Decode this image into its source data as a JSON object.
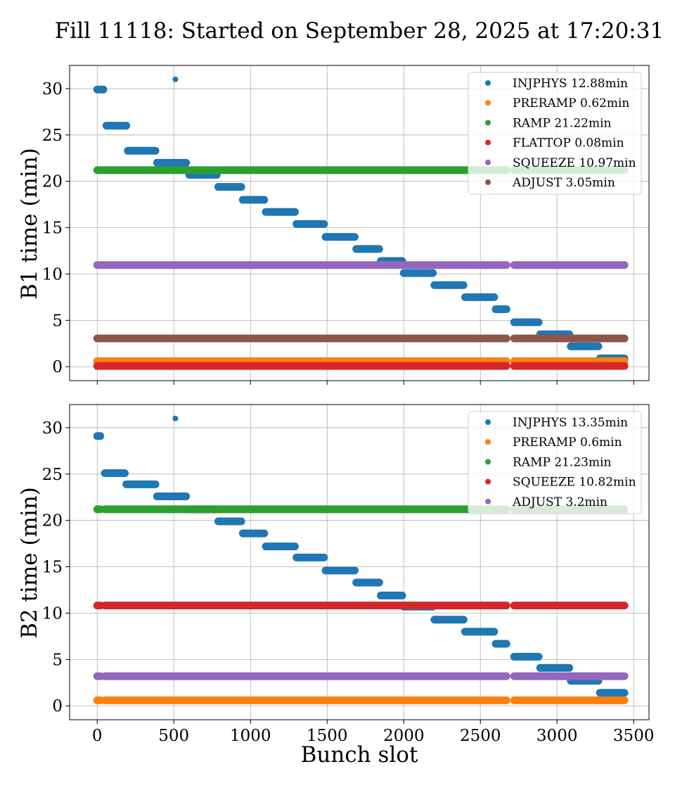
{
  "chart_data": [
    {
      "type": "scatter",
      "title": "Fill 11118: Started on September 28, 2025 at 17:20:31",
      "xlabel": "",
      "ylabel": "B1 time (min)",
      "xlim": [
        -180,
        3600
      ],
      "ylim": [
        -1.5,
        32.5
      ],
      "xticks": [
        0,
        500,
        1000,
        1500,
        2000,
        2500,
        3000,
        3500
      ],
      "yticks": [
        0,
        5,
        10,
        15,
        20,
        25,
        30
      ],
      "x_tick_labels_shown": false,
      "grid": true,
      "legend_position": "top-right",
      "colors": [
        "#1f77b4",
        "#ff7f0e",
        "#2ca02c",
        "#d62728",
        "#9467bd",
        "#8c564b"
      ],
      "series": [
        {
          "name": "INJPHYS 12.88min",
          "segments": [
            {
              "x": [
                0,
                40
              ],
              "y": 29.9
            },
            {
              "x": [
                60,
                190
              ],
              "y": 26.0
            },
            {
              "x": [
                200,
                380
              ],
              "y": 23.3
            },
            {
              "x": [
                390,
                580
              ],
              "y": 22.0
            },
            {
              "x": [
                600,
                780
              ],
              "y": 20.7
            },
            {
              "x": [
                790,
                940
              ],
              "y": 19.4
            },
            {
              "x": [
                950,
                1090
              ],
              "y": 18.0
            },
            {
              "x": [
                1100,
                1290
              ],
              "y": 16.7
            },
            {
              "x": [
                1300,
                1480
              ],
              "y": 15.4
            },
            {
              "x": [
                1490,
                1680
              ],
              "y": 14.0
            },
            {
              "x": [
                1690,
                1840
              ],
              "y": 12.7
            },
            {
              "x": [
                1850,
                1990
              ],
              "y": 11.4
            },
            {
              "x": [
                2000,
                2190
              ],
              "y": 10.1
            },
            {
              "x": [
                2200,
                2390
              ],
              "y": 8.8
            },
            {
              "x": [
                2400,
                2590
              ],
              "y": 7.5
            },
            {
              "x": [
                2600,
                2670
              ],
              "y": 6.2
            },
            {
              "x": [
                2720,
                2880
              ],
              "y": 4.8
            },
            {
              "x": [
                2890,
                3080
              ],
              "y": 3.5
            },
            {
              "x": [
                3090,
                3270
              ],
              "y": 2.2
            },
            {
              "x": [
                3280,
                3440
              ],
              "y": 0.9
            }
          ],
          "points": [
            {
              "x": 510,
              "y": 31.0
            }
          ]
        },
        {
          "name": "PRERAMP 0.62min",
          "segments": [
            {
              "x": [
                0,
                2670
              ],
              "y": 0.6
            },
            {
              "x": [
                2720,
                3440
              ],
              "y": 0.6
            }
          ]
        },
        {
          "name": "RAMP 21.22min",
          "segments": [
            {
              "x": [
                0,
                2670
              ],
              "y": 21.2
            },
            {
              "x": [
                2720,
                3440
              ],
              "y": 21.2
            }
          ]
        },
        {
          "name": "FLATTOP 0.08min",
          "segments": [
            {
              "x": [
                0,
                2670
              ],
              "y": 0.08
            },
            {
              "x": [
                2720,
                3440
              ],
              "y": 0.08
            }
          ]
        },
        {
          "name": "SQUEEZE 10.97min",
          "segments": [
            {
              "x": [
                0,
                2670
              ],
              "y": 10.97
            },
            {
              "x": [
                2720,
                3440
              ],
              "y": 10.97
            }
          ]
        },
        {
          "name": "ADJUST 3.05min",
          "segments": [
            {
              "x": [
                0,
                2670
              ],
              "y": 3.05
            },
            {
              "x": [
                2720,
                3440
              ],
              "y": 3.05
            }
          ]
        }
      ]
    },
    {
      "type": "scatter",
      "title": "",
      "xlabel": "Bunch slot",
      "ylabel": "B2 time (min)",
      "xlim": [
        -180,
        3600
      ],
      "ylim": [
        -1.5,
        32.5
      ],
      "xticks": [
        0,
        500,
        1000,
        1500,
        2000,
        2500,
        3000,
        3500
      ],
      "yticks": [
        0,
        5,
        10,
        15,
        20,
        25,
        30
      ],
      "x_tick_labels_shown": true,
      "grid": true,
      "legend_position": "top-right",
      "colors": [
        "#1f77b4",
        "#ff7f0e",
        "#2ca02c",
        "#d62728",
        "#9467bd"
      ],
      "series": [
        {
          "name": "INJPHYS 13.35min",
          "segments": [
            {
              "x": [
                0,
                20
              ],
              "y": 29.1
            },
            {
              "x": [
                50,
                180
              ],
              "y": 25.1
            },
            {
              "x": [
                190,
                380
              ],
              "y": 23.9
            },
            {
              "x": [
                390,
                580
              ],
              "y": 22.6
            },
            {
              "x": [
                600,
                780
              ],
              "y": 21.2
            },
            {
              "x": [
                790,
                940
              ],
              "y": 19.9
            },
            {
              "x": [
                950,
                1090
              ],
              "y": 18.6
            },
            {
              "x": [
                1100,
                1290
              ],
              "y": 17.2
            },
            {
              "x": [
                1300,
                1480
              ],
              "y": 16.0
            },
            {
              "x": [
                1490,
                1680
              ],
              "y": 14.6
            },
            {
              "x": [
                1690,
                1840
              ],
              "y": 13.3
            },
            {
              "x": [
                1850,
                1990
              ],
              "y": 11.9
            },
            {
              "x": [
                2000,
                2190
              ],
              "y": 10.7
            },
            {
              "x": [
                2200,
                2390
              ],
              "y": 9.3
            },
            {
              "x": [
                2400,
                2590
              ],
              "y": 8.0
            },
            {
              "x": [
                2600,
                2670
              ],
              "y": 6.7
            },
            {
              "x": [
                2720,
                2880
              ],
              "y": 5.3
            },
            {
              "x": [
                2890,
                3080
              ],
              "y": 4.1
            },
            {
              "x": [
                3090,
                3270
              ],
              "y": 2.7
            },
            {
              "x": [
                3280,
                3440
              ],
              "y": 1.4
            }
          ],
          "points": [
            {
              "x": 510,
              "y": 31.0
            }
          ]
        },
        {
          "name": "PRERAMP 0.6min",
          "segments": [
            {
              "x": [
                0,
                20
              ],
              "y": 0.6
            },
            {
              "x": [
                50,
                2670
              ],
              "y": 0.6
            },
            {
              "x": [
                2720,
                3440
              ],
              "y": 0.6
            }
          ]
        },
        {
          "name": "RAMP 21.23min",
          "segments": [
            {
              "x": [
                0,
                20
              ],
              "y": 21.2
            },
            {
              "x": [
                50,
                2670
              ],
              "y": 21.2
            },
            {
              "x": [
                2720,
                3440
              ],
              "y": 21.2
            }
          ]
        },
        {
          "name": "SQUEEZE 10.82min",
          "segments": [
            {
              "x": [
                0,
                20
              ],
              "y": 10.82
            },
            {
              "x": [
                50,
                2670
              ],
              "y": 10.82
            },
            {
              "x": [
                2720,
                3440
              ],
              "y": 10.82
            }
          ]
        },
        {
          "name": "ADJUST 3.2min",
          "segments": [
            {
              "x": [
                0,
                20
              ],
              "y": 3.2
            },
            {
              "x": [
                50,
                2670
              ],
              "y": 3.2
            },
            {
              "x": [
                2720,
                3440
              ],
              "y": 3.2
            }
          ]
        }
      ]
    }
  ]
}
